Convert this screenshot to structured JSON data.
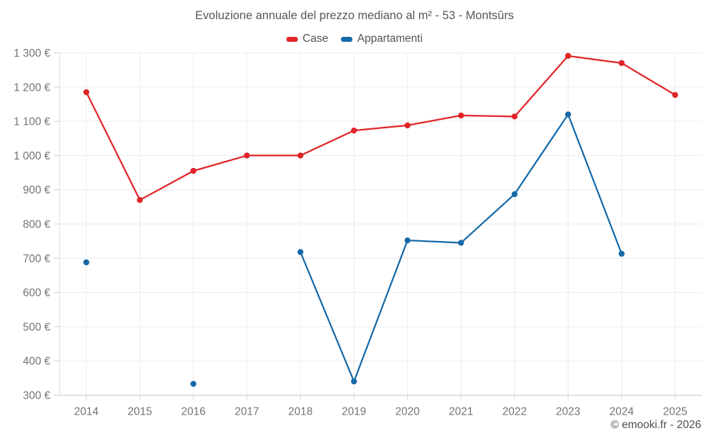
{
  "title": "Evoluzione annuale del prezzo mediano al m² - 53 - Montsûrs",
  "legend": {
    "items": [
      {
        "label": "Case",
        "color": "#e02427"
      },
      {
        "label": "Appartamenti",
        "color": "#1569a8"
      }
    ]
  },
  "watermark": "© emooki.fr - 2026",
  "chart_data": {
    "type": "line",
    "title": "Evoluzione annuale del prezzo mediano al m² - 53 - Montsûrs",
    "xlabel": "",
    "ylabel": "",
    "x": [
      2014,
      2015,
      2016,
      2017,
      2018,
      2019,
      2020,
      2021,
      2022,
      2023,
      2024,
      2025
    ],
    "xticks": [
      "2014",
      "2015",
      "2016",
      "2017",
      "2018",
      "2019",
      "2020",
      "2021",
      "2022",
      "2023",
      "2024",
      "2025"
    ],
    "series": [
      {
        "name": "Case",
        "color": "#e02427",
        "values": [
          1185,
          870,
          955,
          1000,
          1000,
          1073,
          1088,
          1117,
          1114,
          1291,
          1270,
          1177
        ]
      },
      {
        "name": "Appartamenti",
        "color": "#1569a8",
        "values": [
          688,
          null,
          333,
          null,
          718,
          340,
          752,
          745,
          887,
          1120,
          713,
          null
        ]
      }
    ],
    "ylim": [
      300,
      1300
    ],
    "ytick_step": 100,
    "yticks": [
      {
        "value": 300,
        "label": "300 €"
      },
      {
        "value": 400,
        "label": "400 €"
      },
      {
        "value": 500,
        "label": "500 €"
      },
      {
        "value": 600,
        "label": "600 €"
      },
      {
        "value": 700,
        "label": "700 €"
      },
      {
        "value": 800,
        "label": "800 €"
      },
      {
        "value": 900,
        "label": "900 €"
      },
      {
        "value": 1000,
        "label": "1 000 €"
      },
      {
        "value": 1100,
        "label": "1 100 €"
      },
      {
        "value": 1200,
        "label": "1 200 €"
      },
      {
        "value": 1300,
        "label": "1 300 €"
      }
    ],
    "grid": true,
    "legend_position": "top"
  }
}
